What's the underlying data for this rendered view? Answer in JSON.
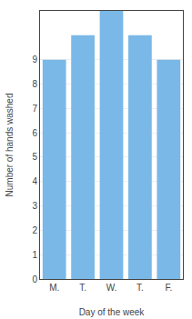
{
  "chart_data": {
    "type": "bar",
    "categories": [
      "M.",
      "T.",
      "W.",
      "T.",
      "F."
    ],
    "values": [
      9,
      10,
      11,
      10,
      9
    ],
    "color": "#7ab8e8",
    "xlabel": "Day of the week",
    "ylabel": "Number of hands washed",
    "ylim": [
      0,
      11
    ],
    "yticks": [
      0,
      1,
      2,
      3,
      4,
      5,
      6,
      7,
      8,
      9
    ],
    "grid": true
  }
}
